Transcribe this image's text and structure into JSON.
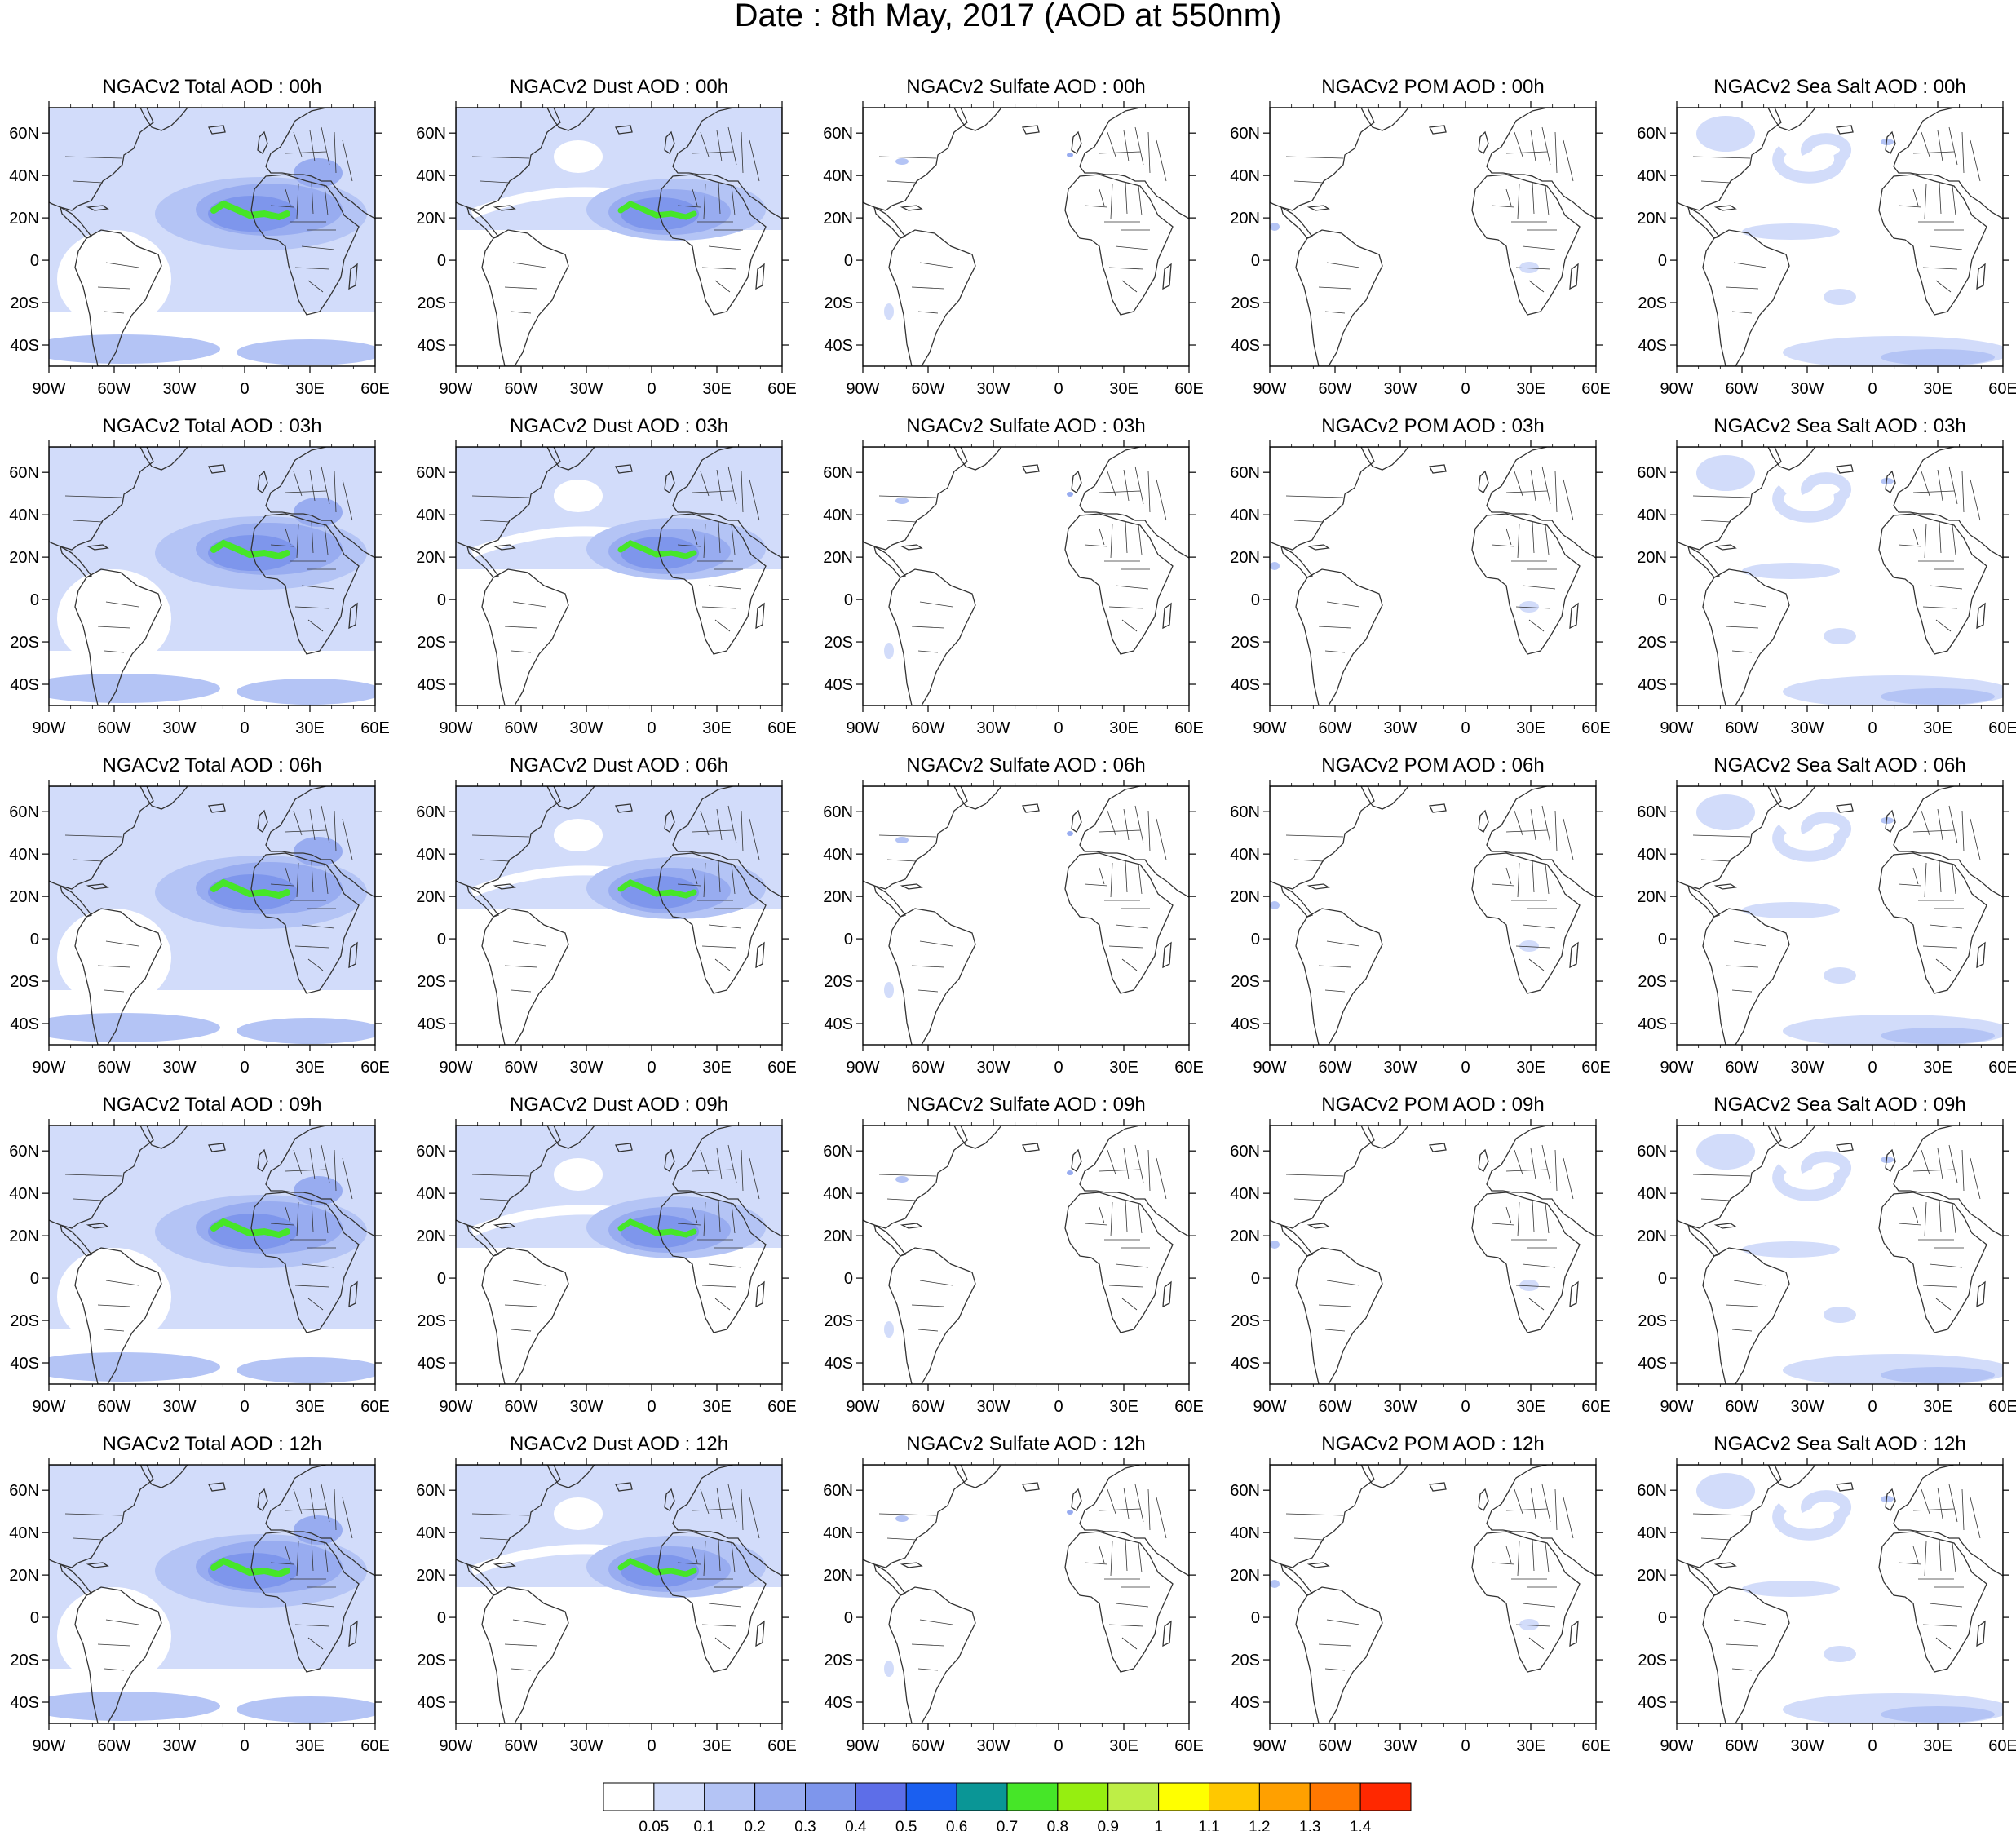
{
  "figure": {
    "title": "Date : 8th May, 2017 (AOD at 550nm)"
  },
  "axes": {
    "lon_labels": [
      "90W",
      "60W",
      "30W",
      "0",
      "30E",
      "60E"
    ],
    "lat_labels": [
      "60N",
      "40N",
      "20N",
      "0",
      "20S",
      "40S"
    ],
    "lon_range": [
      -90,
      60
    ],
    "lat_range": [
      -50,
      72
    ]
  },
  "panels": [
    [
      "NGACv2 Total AOD : 00h",
      "NGACv2 Dust AOD : 00h",
      "NGACv2 Sulfate AOD : 00h",
      "NGACv2 POM AOD : 00h",
      "NGACv2 Sea Salt AOD : 00h"
    ],
    [
      "NGACv2 Total AOD : 03h",
      "NGACv2 Dust AOD : 03h",
      "NGACv2 Sulfate AOD : 03h",
      "NGACv2 POM AOD : 03h",
      "NGACv2 Sea Salt AOD : 03h"
    ],
    [
      "NGACv2 Total AOD : 06h",
      "NGACv2 Dust AOD : 06h",
      "NGACv2 Sulfate AOD : 06h",
      "NGACv2 POM AOD : 06h",
      "NGACv2 Sea Salt AOD : 06h"
    ],
    [
      "NGACv2 Total AOD : 09h",
      "NGACv2 Dust AOD : 09h",
      "NGACv2 Sulfate AOD : 09h",
      "NGACv2 POM AOD : 09h",
      "NGACv2 Sea Salt  AOD : 09h"
    ],
    [
      "NGACv2 Total AOD  : 12h",
      "NGACv2 Dust AOD : 12h",
      "NGACv2 Sulfate AOD : 12h",
      "NGACv2 POM  AOD : 12h",
      "NGACv2 Sea Salt  AOD : 12h"
    ]
  ],
  "colorbar": {
    "labels": [
      "0.05",
      "0.1",
      "0.2",
      "0.3",
      "0.4",
      "0.5",
      "0.6",
      "0.7",
      "0.8",
      "0.9",
      "1",
      "1.1",
      "1.2",
      "1.3",
      "1.4"
    ],
    "colors": [
      "#ffffff",
      "#d2dcfa",
      "#b4c4f5",
      "#98acf0",
      "#7e96ec",
      "#5d6ee8",
      "#1a5ff0",
      "#0a9696",
      "#46e628",
      "#96ee10",
      "#beee46",
      "#ffff00",
      "#ffc800",
      "#ffa000",
      "#ff7800",
      "#ff2800"
    ]
  },
  "styles": {
    "coastline_color": "#333333",
    "aod_light": "#d2dcfa",
    "aod_mid": "#b4c4f5",
    "aod_strong": "#98acf0",
    "aod_dense": "#7e96ec",
    "aod_peak": "#46e628"
  }
}
